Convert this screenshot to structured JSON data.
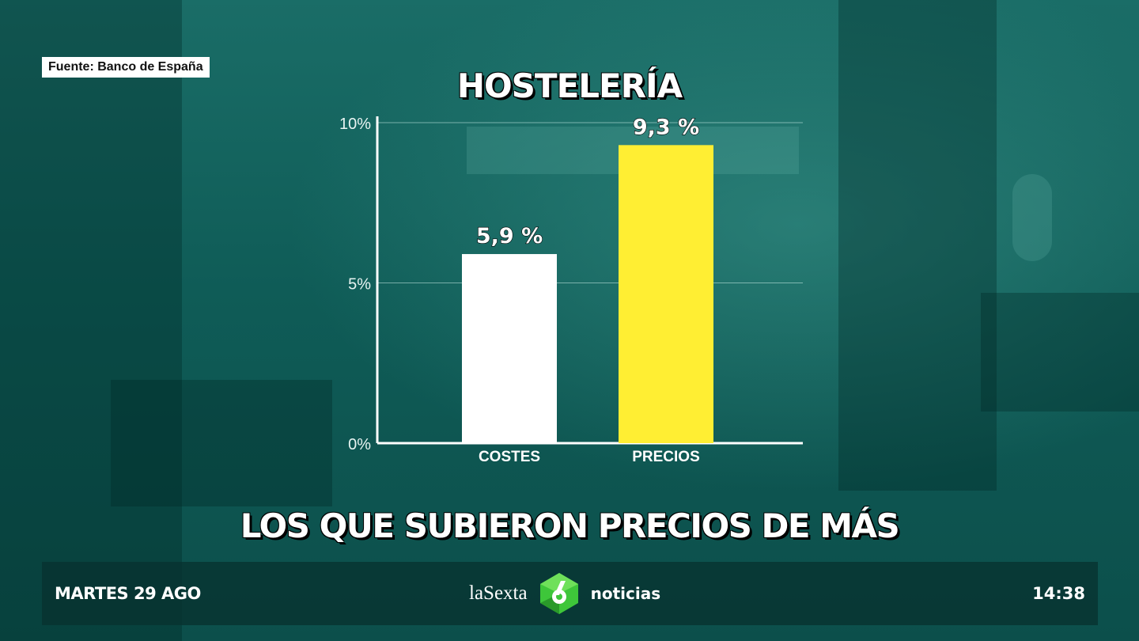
{
  "source": "Fuente: Banco de España",
  "headline": "LOS QUE SUBIERON PRECIOS DE MÁS",
  "ticker": {
    "date": "MARTES 29 AGO",
    "channel": "laSexta",
    "program": "noticias",
    "time": "14:38",
    "logo_icon": "lasexta-6-logo-icon"
  },
  "colors": {
    "costes_bar": "#ffffff",
    "precios_bar": "#ffee33",
    "logo_green": "#3ec63a"
  },
  "chart_data": {
    "type": "bar",
    "title": "HOSTELERÍA",
    "categories": [
      "COSTES",
      "PRECIOS"
    ],
    "values": [
      5.9,
      9.3
    ],
    "value_labels": [
      "5,9 %",
      "9,3 %"
    ],
    "ylim": [
      0,
      10
    ],
    "yticks": [
      0,
      5,
      10
    ],
    "ytick_labels": [
      "0%",
      "5%",
      "10%"
    ],
    "grid": true
  }
}
